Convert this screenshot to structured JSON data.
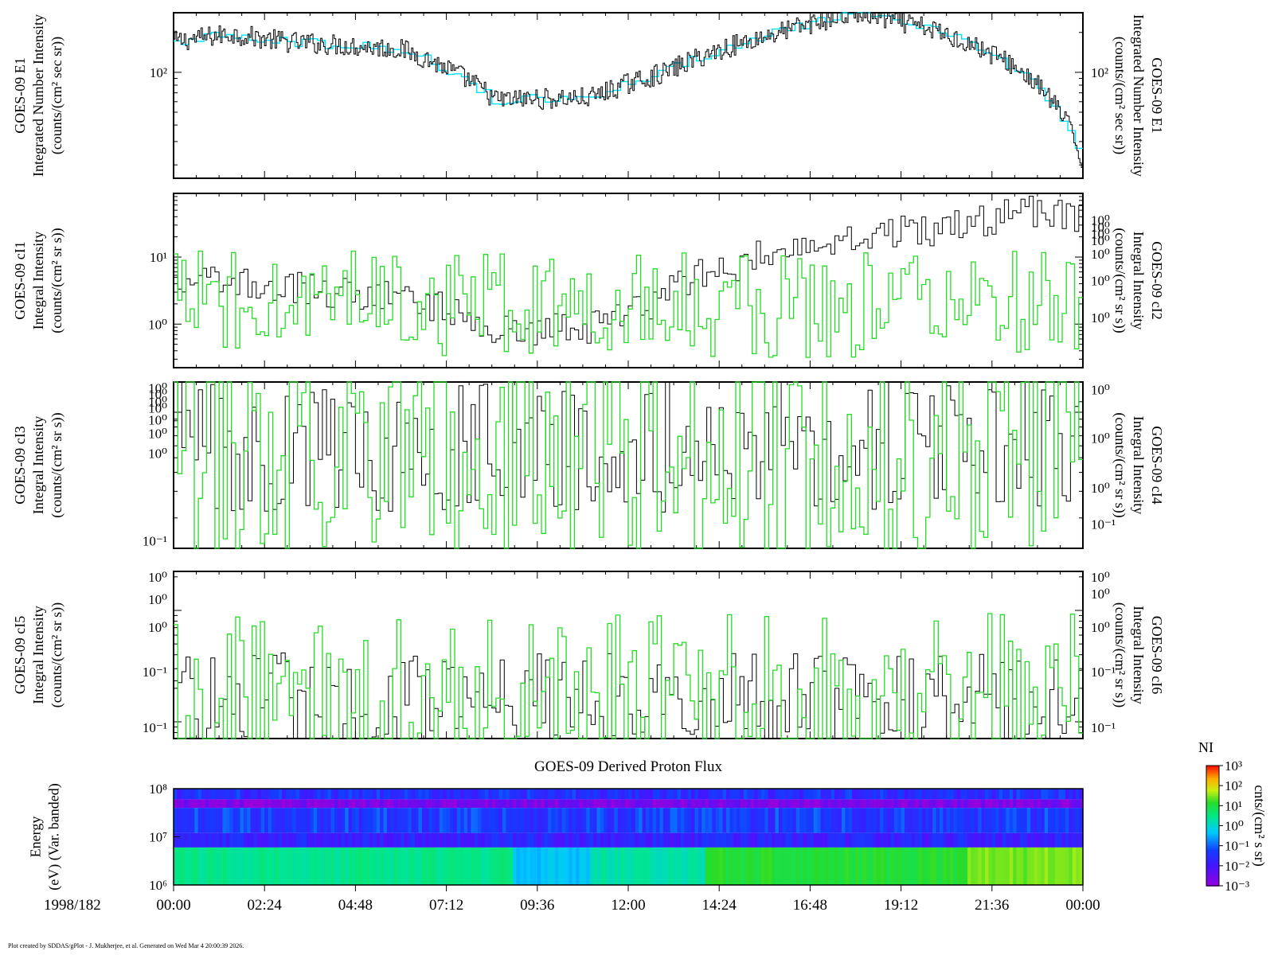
{
  "footer": "Plot created by SDDAS/gPlot - J. Mukherjee, et al.  Generated on Wed Mar 4 20:00:39 2026.",
  "colors": {
    "primary": "#000000",
    "secondary_e1": "#00e5ff",
    "secondary": "#22dd22"
  },
  "chart_data": [
    {
      "type": "line",
      "left_label": [
        "GOES-09 E1",
        "Integrated Number Intensity",
        "(counts/(cm² sec sr))"
      ],
      "right_label": [
        "GOES-09 E1",
        "Integrated Number Intensity",
        "(counts/(cm² sec sr))"
      ],
      "y_log": true,
      "left_ticks": [
        "10²"
      ],
      "right_ticks": [
        "10²"
      ],
      "profile": {
        "x": [
          0,
          1.5,
          3,
          6,
          8.5,
          11,
          13,
          16,
          18,
          20,
          22,
          23.5,
          24
        ],
        "y": [
          170,
          195,
          170,
          150,
          62,
          64,
          100,
          200,
          280,
          210,
          120,
          45,
          20
        ]
      }
    },
    {
      "type": "line",
      "left_label": [
        "GOES-09 cI1",
        "Integral Intensity",
        "(counts/(cm² sr s))"
      ],
      "right_label": [
        "GOES-09 cI2",
        "Integral Intensity",
        "(counts/(cm² sr s))"
      ],
      "y_log": true,
      "left_ticks": [
        "10¹",
        "10⁰"
      ],
      "right_ticks": [
        "10⁰",
        "10⁰",
        "10⁰",
        "10⁰",
        "10⁰",
        "10⁰",
        "10⁰"
      ],
      "profile": {
        "x": [
          0,
          3,
          6,
          8.5,
          11,
          12.5,
          15,
          17,
          19,
          21,
          22.5,
          24
        ],
        "y": [
          4.5,
          3.5,
          2.5,
          0.8,
          0.9,
          1.8,
          8,
          18,
          22,
          30,
          50,
          40
        ]
      }
    },
    {
      "type": "line",
      "left_label": [
        "GOES-09 cI3",
        "Integral Intensity",
        "(counts/(cm² sr s))"
      ],
      "right_label": [
        "GOES-09 cI4",
        "Integral Intensity",
        "(counts/(cm² sr s))"
      ],
      "y_log": true,
      "left_ticks": [
        "10⁰",
        "10⁰",
        "10⁰",
        "10⁰",
        "10⁰",
        "10⁰",
        "10⁰",
        "10⁻¹"
      ],
      "right_ticks": [
        "10⁰",
        "10⁰",
        "10⁰",
        "10⁻¹"
      ],
      "profile": {
        "x": [
          0,
          24
        ],
        "y": [
          0.6,
          0.6
        ]
      }
    },
    {
      "type": "line",
      "left_label": [
        "GOES-09 cI5",
        "Integral Intensity",
        "(counts/(cm² sr s))"
      ],
      "right_label": [
        "GOES-09 cI6",
        "Integral Intensity",
        "(counts/(cm² sr s))"
      ],
      "y_log": true,
      "left_ticks": [
        "10⁰",
        "10⁰",
        "10⁰",
        "10⁻¹",
        "10⁻¹"
      ],
      "right_ticks": [
        "10⁰",
        "10⁰",
        "10⁰",
        "10⁻¹",
        "10⁻¹"
      ],
      "profile": {
        "x": [
          0,
          24
        ],
        "y": [
          0.15,
          0.15
        ]
      }
    },
    {
      "type": "heatmap",
      "title": "GOES-09 Derived Proton Flux",
      "left_label": [
        "Energy",
        "(eV) (Var. banded)"
      ],
      "y_ticks": [
        "10⁸",
        "10⁷",
        "10⁶"
      ],
      "y_log": true,
      "ylim": [
        "1e6",
        "1e8"
      ],
      "colorbar": {
        "label": "NI",
        "units": "cnts/(cm² s sr)",
        "ticks": [
          "10³",
          "10²",
          "10¹",
          "10⁰",
          "10⁻¹",
          "10⁻²",
          "10⁻³"
        ],
        "log_range": [
          -3,
          3
        ]
      },
      "bands": [
        {
          "e_lo": "6e7",
          "e_hi": "1e8",
          "level": -1.5
        },
        {
          "e_lo": "4e7",
          "e_hi": "6e7",
          "level": -2.7
        },
        {
          "e_lo": "1.2e7",
          "e_hi": "4e7",
          "level": -1.3
        },
        {
          "e_lo": "6e6",
          "e_hi": "1.2e7",
          "level": -1.7
        },
        {
          "e_lo": "1e6",
          "e_hi": "6e6",
          "level": 0.7
        }
      ]
    }
  ],
  "x_axis": {
    "date_label": "1998/182",
    "ticks": [
      "00:00",
      "02:24",
      "04:48",
      "07:12",
      "09:36",
      "12:00",
      "14:24",
      "16:48",
      "19:12",
      "21:36",
      "00:00"
    ]
  }
}
